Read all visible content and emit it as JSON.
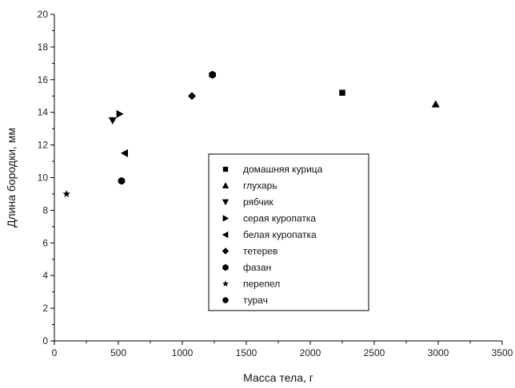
{
  "chart_data": {
    "type": "scatter",
    "xlabel": "Масса тела, г",
    "ylabel": "Длина бородки, мм",
    "xlim": [
      0,
      3500
    ],
    "ylim": [
      0,
      20
    ],
    "x_ticks": [
      "0",
      "500",
      "1000",
      "1500",
      "2000",
      "2500",
      "3000",
      "3500"
    ],
    "y_ticks": [
      "0",
      "2",
      "4",
      "6",
      "8",
      "10",
      "12",
      "14",
      "16",
      "18",
      "20"
    ],
    "grid": false,
    "legend_position": "center",
    "marker_color": "#000000",
    "series": [
      {
        "name": "домашняя курица",
        "marker": "square",
        "points": [
          {
            "x": 2250,
            "y": 15.2
          }
        ]
      },
      {
        "name": "глухарь",
        "marker": "triangle-up",
        "points": [
          {
            "x": 2980,
            "y": 14.5
          }
        ]
      },
      {
        "name": "рябчик",
        "marker": "triangle-down",
        "points": [
          {
            "x": 455,
            "y": 13.5
          }
        ]
      },
      {
        "name": "серая куропатка",
        "marker": "triangle-right",
        "points": [
          {
            "x": 510,
            "y": 13.9
          }
        ]
      },
      {
        "name": "белая куропатка",
        "marker": "triangle-left",
        "points": [
          {
            "x": 550,
            "y": 11.5
          }
        ]
      },
      {
        "name": "тетерев",
        "marker": "diamond",
        "points": [
          {
            "x": 1075,
            "y": 15.0
          }
        ]
      },
      {
        "name": "фазан",
        "marker": "hexagon",
        "points": [
          {
            "x": 1235,
            "y": 16.3
          }
        ]
      },
      {
        "name": "перепел",
        "marker": "star",
        "points": [
          {
            "x": 95,
            "y": 9.0
          }
        ]
      },
      {
        "name": "турач",
        "marker": "circle",
        "points": [
          {
            "x": 525,
            "y": 9.8
          }
        ]
      }
    ]
  }
}
